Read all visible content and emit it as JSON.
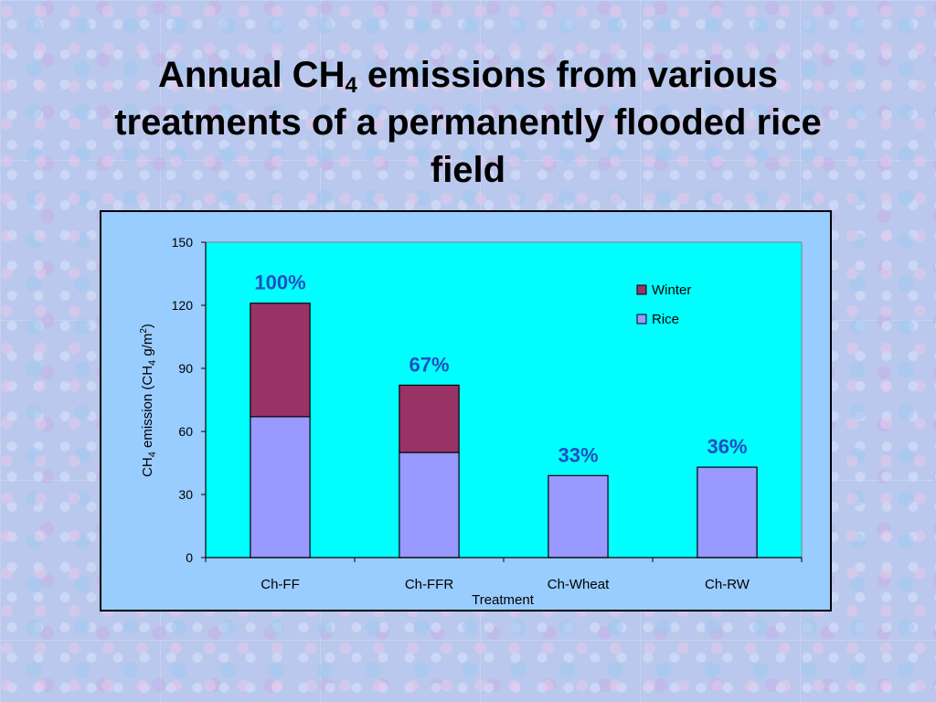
{
  "slide": {
    "title_part1": "Annual CH",
    "title_sub": "4",
    "title_part2": " emissions from various treatments of a permanently flooded rice field"
  },
  "chart_data": {
    "type": "bar",
    "stacked": true,
    "categories": [
      "Ch-FF",
      "Ch-FFR",
      "Ch-Wheat",
      "Ch-RW"
    ],
    "series": [
      {
        "name": "Rice",
        "color": "#9999ff",
        "values": [
          67,
          50,
          39,
          43
        ]
      },
      {
        "name": "Winter",
        "color": "#993366",
        "values": [
          54,
          32,
          0,
          0
        ]
      }
    ],
    "data_labels": [
      "100%",
      "67%",
      "33%",
      "36%"
    ],
    "data_label_color": "#1f4fbf",
    "xlabel": "Treatment",
    "ylabel": {
      "part1": "CH",
      "sub1": "4",
      "part2": " emission (CH",
      "sub2": "4",
      "part3": " g/m",
      "sup": "2",
      "part4": ")"
    },
    "ylim": [
      0,
      150
    ],
    "yticks": [
      0,
      30,
      60,
      90,
      120,
      150
    ],
    "plot_background": "#00ffff",
    "chart_background": "#99ccff",
    "grid": false,
    "legend_position": "top-right"
  }
}
